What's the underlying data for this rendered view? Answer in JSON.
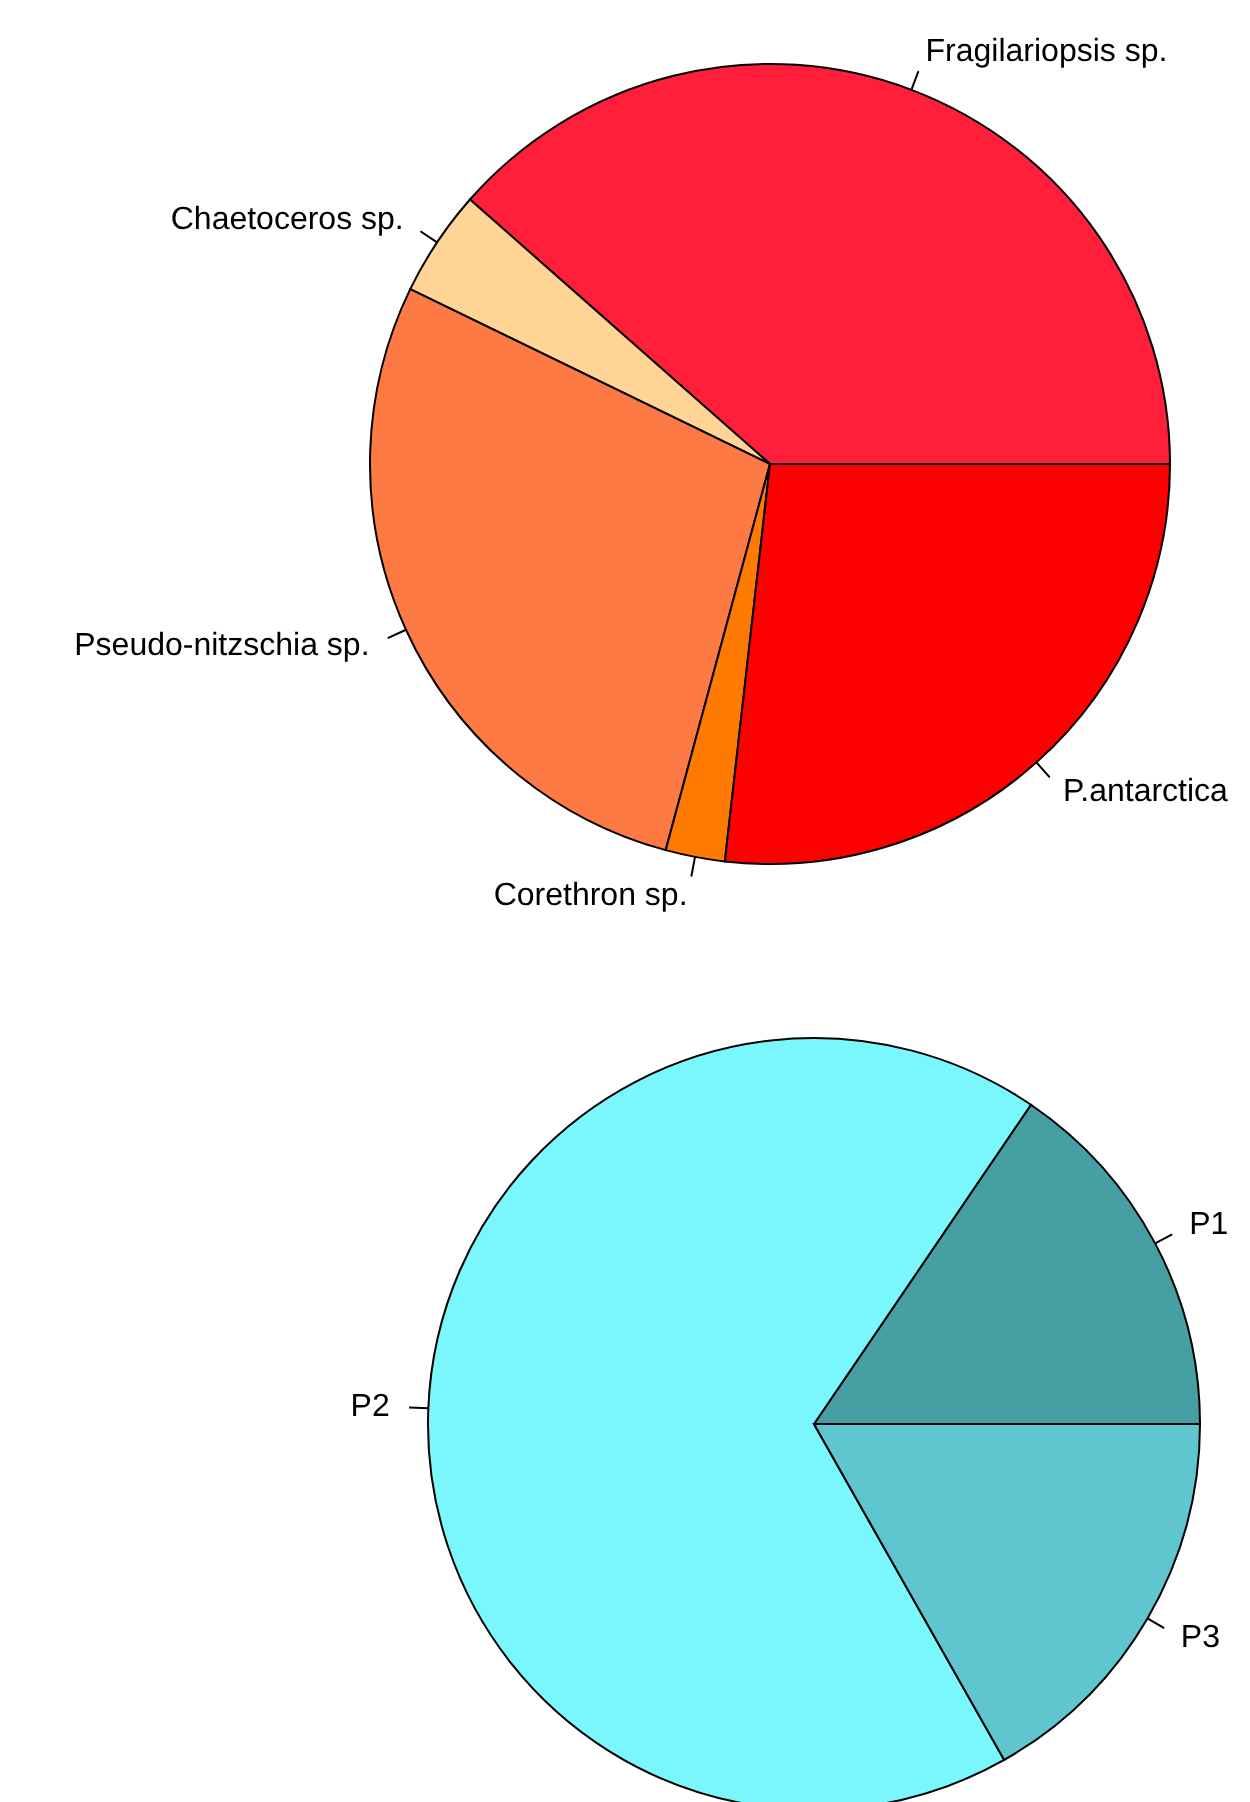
{
  "chart_data": [
    {
      "type": "pie",
      "categories": [
        "Fragilariopsis sp.",
        "Chaetoceros sp.",
        "Pseudo-nitzschia sp.",
        "Corethron sp.",
        "P.antarctica"
      ],
      "values": [
        38.5,
        4.3,
        28,
        2.4,
        26.8
      ],
      "colors": [
        "#ff1f3a",
        "#ffd494",
        "#fd7a45",
        "#ff7a00",
        "#ff0000"
      ]
    },
    {
      "type": "pie",
      "categories": [
        "P1",
        "P2",
        "P3"
      ],
      "values": [
        15.5,
        67.7,
        16.8
      ],
      "colors": [
        "#469fa3",
        "#79f7fd",
        "#5fc6cf"
      ]
    }
  ]
}
